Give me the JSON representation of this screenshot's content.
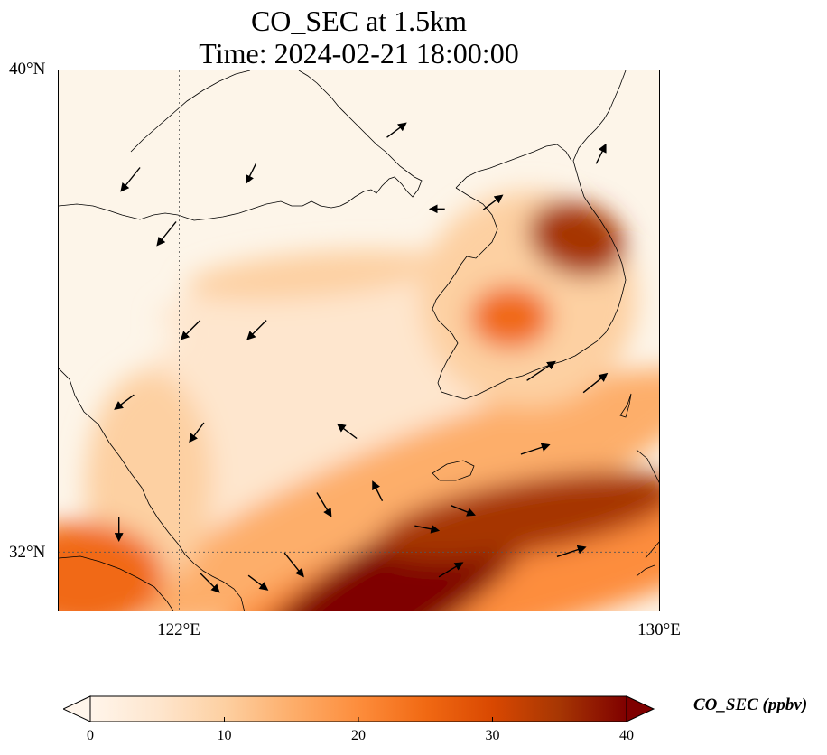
{
  "map": {
    "title_line1": "CO_SEC at 1.5km",
    "title_line2": "Time: 2024-02-21 18:00:00",
    "extent": {
      "lon_min": 120,
      "lon_max": 130,
      "lat_min": 31,
      "lat_max": 40
    },
    "lat_ticks": [
      {
        "value": 40,
        "label": "40°N"
      },
      {
        "value": 32,
        "label": "32°N"
      }
    ],
    "lon_ticks": [
      {
        "value": 122,
        "label": "122°E"
      },
      {
        "value": 130,
        "label": "130°E"
      }
    ],
    "gridlines": {
      "lon": [
        122
      ],
      "lat": [
        32
      ],
      "style": "dotted"
    },
    "field_variable": "CO_SEC",
    "hotspots_ppbv": [
      {
        "lon": 125.5,
        "lat": 31.3,
        "value": 45
      },
      {
        "lon": 127.8,
        "lat": 32.6,
        "value": 34
      },
      {
        "lon": 120.4,
        "lat": 31.6,
        "value": 24
      },
      {
        "lon": 128.6,
        "lat": 37.2,
        "value": 34
      },
      {
        "lon": 127.5,
        "lat": 35.9,
        "value": 27
      },
      {
        "lon": 124.2,
        "lat": 36.6,
        "value": 12
      }
    ],
    "wind_vectors": [
      {
        "lon": 121.2,
        "lat": 38.2,
        "u": -4,
        "v": -5
      },
      {
        "lon": 121.8,
        "lat": 37.3,
        "u": -4,
        "v": -5
      },
      {
        "lon": 122.2,
        "lat": 35.7,
        "u": -4,
        "v": -4
      },
      {
        "lon": 123.3,
        "lat": 35.7,
        "u": -4,
        "v": -4
      },
      {
        "lon": 121.1,
        "lat": 34.5,
        "u": -4,
        "v": -3
      },
      {
        "lon": 122.3,
        "lat": 34.0,
        "u": -3,
        "v": -4
      },
      {
        "lon": 124.8,
        "lat": 34.0,
        "u": -4,
        "v": 3
      },
      {
        "lon": 125.3,
        "lat": 33.0,
        "u": -2,
        "v": 4
      },
      {
        "lon": 124.4,
        "lat": 32.8,
        "u": 3,
        "v": -5
      },
      {
        "lon": 123.9,
        "lat": 31.8,
        "u": 4,
        "v": -5
      },
      {
        "lon": 126.1,
        "lat": 32.4,
        "u": 5,
        "v": -1
      },
      {
        "lon": 126.7,
        "lat": 32.7,
        "u": 5,
        "v": -2
      },
      {
        "lon": 126.5,
        "lat": 31.7,
        "u": 5,
        "v": 3
      },
      {
        "lon": 128.5,
        "lat": 32.0,
        "u": 6,
        "v": 2
      },
      {
        "lon": 128.0,
        "lat": 35.0,
        "u": 6,
        "v": 4
      },
      {
        "lon": 128.9,
        "lat": 34.8,
        "u": 5,
        "v": 4
      },
      {
        "lon": 126.3,
        "lat": 37.7,
        "u": -3,
        "v": 0
      },
      {
        "lon": 127.2,
        "lat": 37.8,
        "u": 4,
        "v": 3
      },
      {
        "lon": 129.0,
        "lat": 38.6,
        "u": 2,
        "v": 4
      },
      {
        "lon": 125.6,
        "lat": 39.0,
        "u": 4,
        "v": 3
      },
      {
        "lon": 123.2,
        "lat": 38.3,
        "u": -2,
        "v": -4
      },
      {
        "lon": 127.9,
        "lat": 33.7,
        "u": 6,
        "v": 2
      },
      {
        "lon": 121.0,
        "lat": 32.4,
        "u": 0,
        "v": -5
      },
      {
        "lon": 122.5,
        "lat": 31.5,
        "u": 4,
        "v": -4
      },
      {
        "lon": 123.3,
        "lat": 31.5,
        "u": 4,
        "v": -3
      }
    ]
  },
  "colorbar": {
    "label": "CO_SEC (ppbv)",
    "min": 0,
    "max": 40,
    "ticks": [
      "0",
      "10",
      "20",
      "30",
      "40"
    ],
    "colors": [
      "#fff5eb",
      "#fee6ce",
      "#fdd0a2",
      "#fdae6b",
      "#fd8d3c",
      "#f16913",
      "#d94801",
      "#a63603",
      "#7f0000"
    ]
  }
}
